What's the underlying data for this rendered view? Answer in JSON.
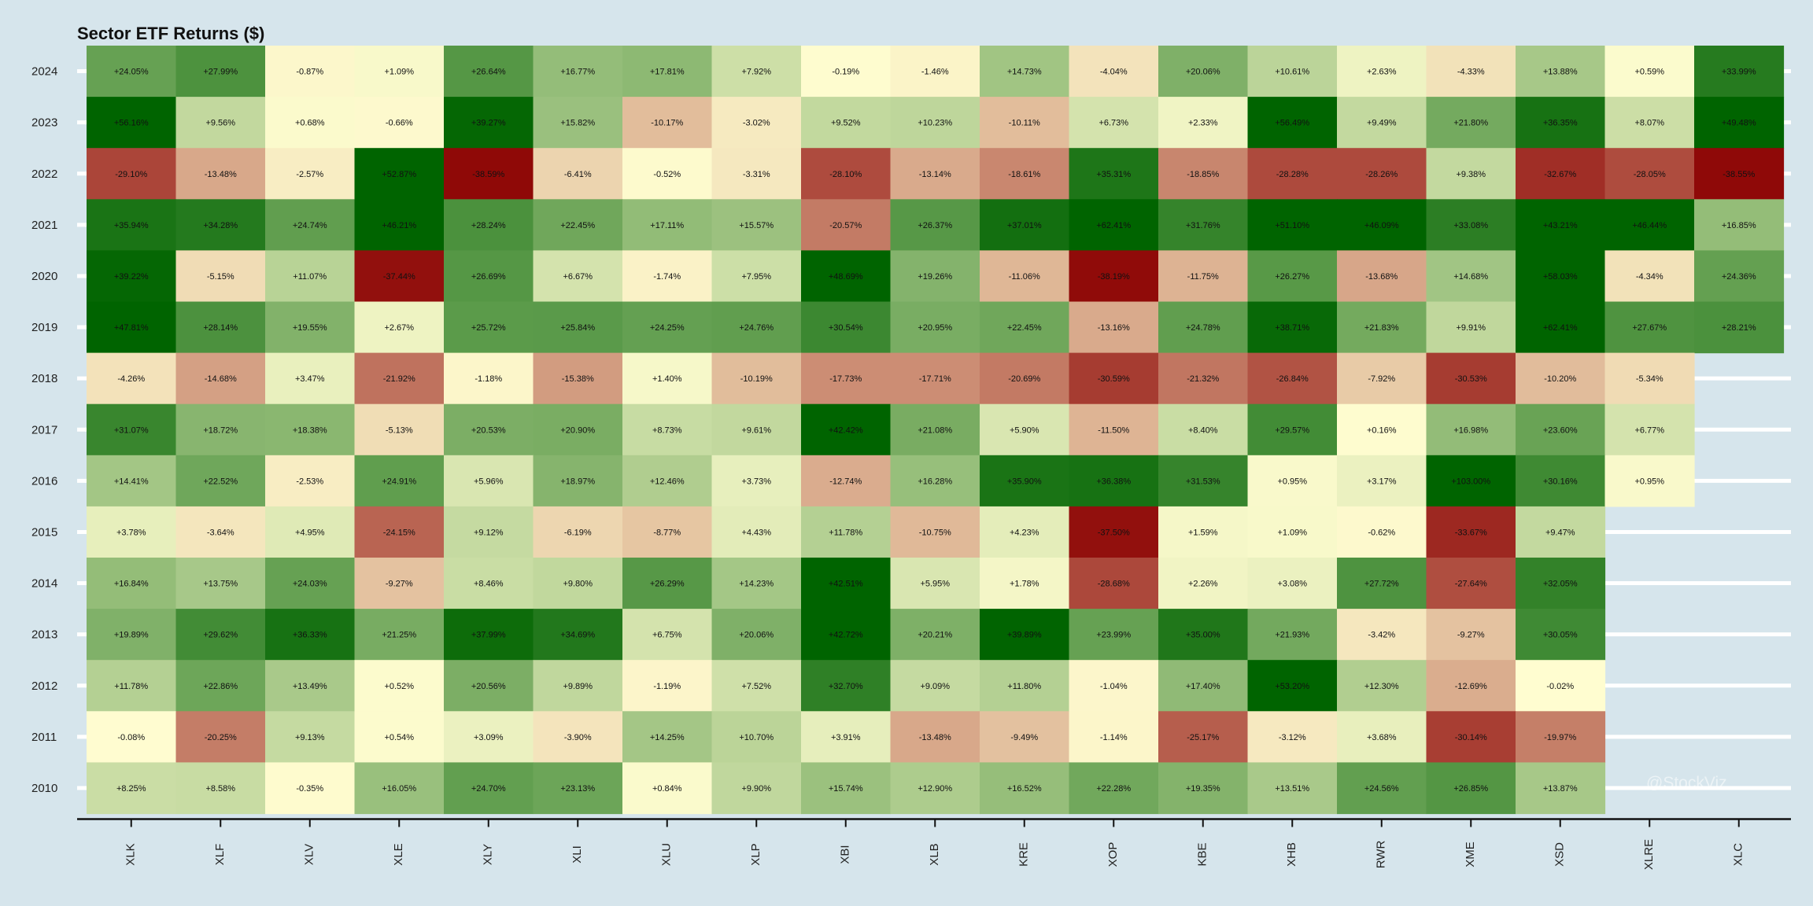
{
  "chart_data": {
    "type": "heatmap",
    "title": "Sector ETF Returns ($)",
    "watermark": "@StockViz",
    "columns": [
      "XLK",
      "XLF",
      "XLV",
      "XLE",
      "XLY",
      "XLI",
      "XLU",
      "XLP",
      "XBI",
      "XLB",
      "KRE",
      "XOP",
      "KBE",
      "XHB",
      "RWR",
      "XME",
      "XSD",
      "XLRE",
      "XLC"
    ],
    "years": [
      "2024",
      "2023",
      "2022",
      "2021",
      "2020",
      "2019",
      "2018",
      "2017",
      "2016",
      "2015",
      "2014",
      "2013",
      "2012",
      "2011",
      "2010"
    ],
    "value_unit": "%",
    "color_scale": {
      "min": -40,
      "mid": 0,
      "max": 40,
      "low": "#8b0000",
      "mid_color": "#fffdd0",
      "high": "#006400"
    },
    "grid": false,
    "rows": [
      {
        "year": "2024",
        "values": [
          24.05,
          27.99,
          -0.87,
          1.09,
          26.64,
          16.77,
          17.81,
          7.92,
          -0.19,
          -1.46,
          14.73,
          -4.04,
          20.06,
          10.61,
          2.63,
          -4.33,
          13.88,
          0.59,
          33.99
        ],
        "labels": [
          "+24.05%",
          "+27.99%",
          "-0.87%",
          "+1.09%",
          "+26.64%",
          "+16.77%",
          "+17.81%",
          "+7.92%",
          "-0.19%",
          "-1.46%",
          "+14.73%",
          "-4.04%",
          "+20.06%",
          "+10.61%",
          "+2.63%",
          "-4.33%",
          "+13.88%",
          "+0.59%",
          "+33.99%"
        ]
      },
      {
        "year": "2023",
        "values": [
          56.16,
          9.56,
          0.68,
          -0.66,
          39.27,
          15.82,
          -10.17,
          -3.02,
          9.52,
          10.23,
          -10.11,
          6.73,
          2.33,
          56.49,
          9.49,
          21.8,
          36.35,
          8.07,
          49.48
        ],
        "labels": [
          "+56.16%",
          "+9.56%",
          "+0.68%",
          "-0.66%",
          "+39.27%",
          "+15.82%",
          "-10.17%",
          "-3.02%",
          "+9.52%",
          "+10.23%",
          "-10.11%",
          "+6.73%",
          "+2.33%",
          "+56.49%",
          "+9.49%",
          "+21.80%",
          "+36.35%",
          "+8.07%",
          "+49.48%"
        ]
      },
      {
        "year": "2022",
        "values": [
          -29.1,
          -13.48,
          -2.57,
          52.87,
          -38.59,
          -6.41,
          -0.52,
          -3.31,
          -28.1,
          -13.14,
          -18.61,
          35.31,
          -18.85,
          -28.28,
          -28.26,
          9.38,
          -32.67,
          -28.05,
          -38.55
        ],
        "labels": [
          "-29.10%",
          "-13.48%",
          "-2.57%",
          "+52.87%",
          "-38.59%",
          "-6.41%",
          "-0.52%",
          "-3.31%",
          "-28.10%",
          "-13.14%",
          "-18.61%",
          "+35.31%",
          "-18.85%",
          "-28.28%",
          "-28.26%",
          "+9.38%",
          "-32.67%",
          "-28.05%",
          "-38.55%"
        ]
      },
      {
        "year": "2021",
        "values": [
          35.94,
          34.28,
          24.74,
          46.21,
          28.24,
          22.45,
          17.11,
          15.57,
          -20.57,
          26.37,
          37.01,
          62.41,
          31.76,
          51.1,
          46.09,
          33.08,
          43.21,
          46.44,
          16.85
        ],
        "labels": [
          "+35.94%",
          "+34.28%",
          "+24.74%",
          "+46.21%",
          "+28.24%",
          "+22.45%",
          "+17.11%",
          "+15.57%",
          "-20.57%",
          "+26.37%",
          "+37.01%",
          "+62.41%",
          "+31.76%",
          "+51.10%",
          "+46.09%",
          "+33.08%",
          "+43.21%",
          "+46.44%",
          "+16.85%"
        ]
      },
      {
        "year": "2020",
        "values": [
          39.22,
          -5.15,
          11.07,
          -37.44,
          26.69,
          6.67,
          -1.74,
          7.95,
          48.69,
          19.26,
          -11.06,
          -38.19,
          -11.75,
          26.27,
          -13.68,
          14.68,
          58.03,
          -4.34,
          24.36
        ],
        "labels": [
          "+39.22%",
          "-5.15%",
          "+11.07%",
          "-37.44%",
          "+26.69%",
          "+6.67%",
          "-1.74%",
          "+7.95%",
          "+48.69%",
          "+19.26%",
          "-11.06%",
          "-38.19%",
          "-11.75%",
          "+26.27%",
          "-13.68%",
          "+14.68%",
          "+58.03%",
          "-4.34%",
          "+24.36%"
        ]
      },
      {
        "year": "2019",
        "values": [
          47.81,
          28.14,
          19.55,
          2.67,
          25.72,
          25.84,
          24.25,
          24.76,
          30.54,
          20.95,
          22.45,
          -13.16,
          24.78,
          38.71,
          21.83,
          9.91,
          62.41,
          27.67,
          28.21
        ],
        "labels": [
          "+47.81%",
          "+28.14%",
          "+19.55%",
          "+2.67%",
          "+25.72%",
          "+25.84%",
          "+24.25%",
          "+24.76%",
          "+30.54%",
          "+20.95%",
          "+22.45%",
          "-13.16%",
          "+24.78%",
          "+38.71%",
          "+21.83%",
          "+9.91%",
          "+62.41%",
          "+27.67%",
          "+28.21%"
        ]
      },
      {
        "year": "2018",
        "values": [
          -4.26,
          -14.68,
          3.47,
          -21.92,
          -1.18,
          -15.38,
          1.4,
          -10.19,
          -17.73,
          -17.71,
          -20.69,
          -30.59,
          -21.32,
          -26.84,
          -7.92,
          -30.53,
          -10.2,
          -5.34
        ],
        "labels": [
          "-4.26%",
          "-14.68%",
          "+3.47%",
          "-21.92%",
          "-1.18%",
          "-15.38%",
          "+1.40%",
          "-10.19%",
          "-17.73%",
          "-17.71%",
          "-20.69%",
          "-30.59%",
          "-21.32%",
          "-26.84%",
          "-7.92%",
          "-30.53%",
          "-10.20%",
          "-5.34%"
        ]
      },
      {
        "year": "2017",
        "values": [
          31.07,
          18.72,
          18.38,
          -5.13,
          20.53,
          20.9,
          8.73,
          9.61,
          42.42,
          21.08,
          5.9,
          -11.5,
          8.4,
          29.57,
          0.16,
          16.98,
          23.6,
          6.77
        ],
        "labels": [
          "+31.07%",
          "+18.72%",
          "+18.38%",
          "-5.13%",
          "+20.53%",
          "+20.90%",
          "+8.73%",
          "+9.61%",
          "+42.42%",
          "+21.08%",
          "+5.90%",
          "-11.50%",
          "+8.40%",
          "+29.57%",
          "+0.16%",
          "+16.98%",
          "+23.60%",
          "+6.77%"
        ]
      },
      {
        "year": "2016",
        "values": [
          14.41,
          22.52,
          -2.53,
          24.91,
          5.96,
          18.97,
          12.46,
          3.73,
          -12.74,
          16.28,
          35.9,
          36.38,
          31.53,
          0.95,
          3.17,
          103.0,
          30.16,
          0.95
        ],
        "labels": [
          "+14.41%",
          "+22.52%",
          "-2.53%",
          "+24.91%",
          "+5.96%",
          "+18.97%",
          "+12.46%",
          "+3.73%",
          "-12.74%",
          "+16.28%",
          "+35.90%",
          "+36.38%",
          "+31.53%",
          "+0.95%",
          "+3.17%",
          "+103.00%",
          "+30.16%",
          "+0.95%"
        ]
      },
      {
        "year": "2015",
        "values": [
          3.78,
          -3.64,
          4.95,
          -24.15,
          9.12,
          -6.19,
          -8.77,
          4.43,
          11.78,
          -10.75,
          4.23,
          -37.5,
          1.59,
          1.09,
          -0.62,
          -33.67,
          9.47
        ],
        "labels": [
          "+3.78%",
          "-3.64%",
          "+4.95%",
          "-24.15%",
          "+9.12%",
          "-6.19%",
          "-8.77%",
          "+4.43%",
          "+11.78%",
          "-10.75%",
          "+4.23%",
          "-37.50%",
          "+1.59%",
          "+1.09%",
          "-0.62%",
          "-33.67%",
          "+9.47%"
        ]
      },
      {
        "year": "2014",
        "values": [
          16.84,
          13.75,
          24.03,
          -9.27,
          8.46,
          9.8,
          26.29,
          14.23,
          42.51,
          5.95,
          1.78,
          -28.68,
          2.26,
          3.08,
          27.72,
          -27.64,
          32.05
        ],
        "labels": [
          "+16.84%",
          "+13.75%",
          "+24.03%",
          "-9.27%",
          "+8.46%",
          "+9.80%",
          "+26.29%",
          "+14.23%",
          "+42.51%",
          "+5.95%",
          "+1.78%",
          "-28.68%",
          "+2.26%",
          "+3.08%",
          "+27.72%",
          "-27.64%",
          "+32.05%"
        ]
      },
      {
        "year": "2013",
        "values": [
          19.89,
          29.62,
          36.33,
          21.25,
          37.99,
          34.69,
          6.75,
          20.06,
          42.72,
          20.21,
          39.89,
          23.99,
          35.0,
          21.93,
          -3.42,
          -9.27,
          30.05
        ],
        "labels": [
          "+19.89%",
          "+29.62%",
          "+36.33%",
          "+21.25%",
          "+37.99%",
          "+34.69%",
          "+6.75%",
          "+20.06%",
          "+42.72%",
          "+20.21%",
          "+39.89%",
          "+23.99%",
          "+35.00%",
          "+21.93%",
          "-3.42%",
          "-9.27%",
          "+30.05%"
        ]
      },
      {
        "year": "2012",
        "values": [
          11.78,
          22.86,
          13.49,
          0.52,
          20.56,
          9.89,
          -1.19,
          7.52,
          32.7,
          9.09,
          11.8,
          -1.04,
          17.4,
          53.2,
          12.3,
          -12.69,
          -0.02
        ],
        "labels": [
          "+11.78%",
          "+22.86%",
          "+13.49%",
          "+0.52%",
          "+20.56%",
          "+9.89%",
          "-1.19%",
          "+7.52%",
          "+32.70%",
          "+9.09%",
          "+11.80%",
          "-1.04%",
          "+17.40%",
          "+53.20%",
          "+12.30%",
          "-12.69%",
          "-0.02%"
        ]
      },
      {
        "year": "2011",
        "values": [
          -0.08,
          -20.25,
          9.13,
          0.54,
          3.09,
          -3.9,
          14.25,
          10.7,
          3.91,
          -13.48,
          -9.49,
          -1.14,
          -25.17,
          -3.12,
          3.68,
          -30.14,
          -19.97
        ],
        "labels": [
          "-0.08%",
          "-20.25%",
          "+9.13%",
          "+0.54%",
          "+3.09%",
          "-3.90%",
          "+14.25%",
          "+10.70%",
          "+3.91%",
          "-13.48%",
          "-9.49%",
          "-1.14%",
          "-25.17%",
          "-3.12%",
          "+3.68%",
          "-30.14%",
          "-19.97%"
        ]
      },
      {
        "year": "2010",
        "values": [
          8.25,
          8.58,
          -0.35,
          16.05,
          24.7,
          23.13,
          0.84,
          9.9,
          15.74,
          12.9,
          16.52,
          22.28,
          19.35,
          13.51,
          24.56,
          26.85,
          13.87
        ],
        "labels": [
          "+8.25%",
          "+8.58%",
          "-0.35%",
          "+16.05%",
          "+24.70%",
          "+23.13%",
          "+0.84%",
          "+9.90%",
          "+15.74%",
          "+12.90%",
          "+16.52%",
          "+22.28%",
          "+19.35%",
          "+13.51%",
          "+24.56%",
          "+26.85%",
          "+13.87%"
        ]
      }
    ]
  }
}
